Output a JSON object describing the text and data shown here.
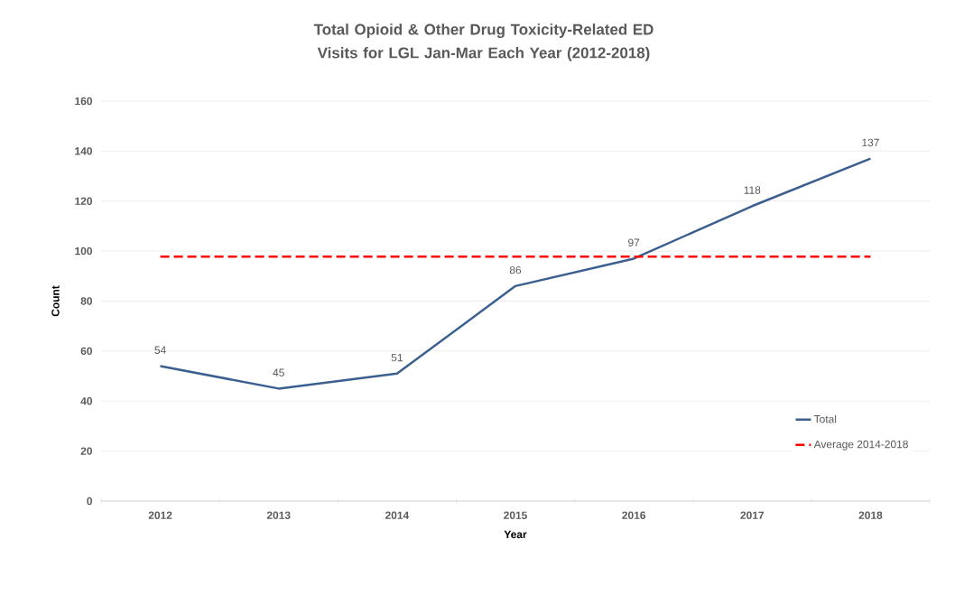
{
  "chart_data": {
    "type": "line",
    "title": "Total Opioid & Other Drug Toxicity-Related ED Visits for LGL Jan-Mar Each Year (2012-2018)",
    "xlabel": "Year",
    "ylabel": "Count",
    "categories": [
      "2012",
      "2013",
      "2014",
      "2015",
      "2016",
      "2017",
      "2018"
    ],
    "series": [
      {
        "name": "Total",
        "color": "#3b5f8f",
        "values": [
          54,
          45,
          51,
          86,
          97,
          118,
          137
        ],
        "value_labels": [
          "54",
          "45",
          "51",
          "86",
          "97",
          "118",
          "137"
        ]
      }
    ],
    "ref_lines": [
      {
        "axis": "y",
        "value": 97.8,
        "label": "Average 2014-2018",
        "color": "#ff0000",
        "line_style": "dashed"
      }
    ],
    "ylim": [
      0,
      160
    ],
    "yticks": [
      0,
      20,
      40,
      60,
      80,
      100,
      120,
      140,
      160
    ],
    "grid": "y",
    "legend": "bottom right",
    "marker": "none"
  }
}
